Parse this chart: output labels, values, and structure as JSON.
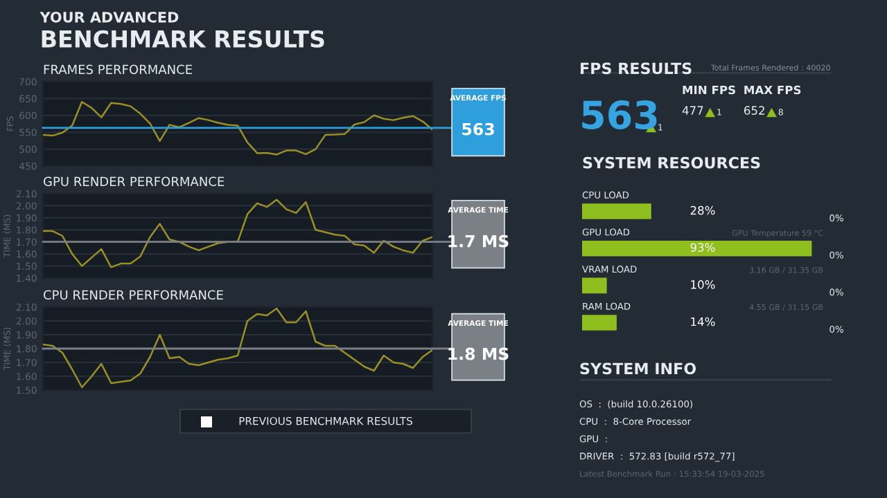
{
  "chart_data": [
    {
      "type": "other",
      "subtitle": "YOUR ADVANCED",
      "title": "BENCHMARK RESULTS",
      "annotations": [
        "PREVIOUS BENCHMARK RESULTS"
      ]
    },
    {
      "type": "line",
      "title": "FRAMES PERFORMANCE",
      "ylabel": "FPS",
      "categories": [
        null,
        null,
        null,
        null,
        null,
        null,
        null,
        null,
        null,
        null,
        null,
        null,
        null,
        null,
        null,
        null,
        null,
        null,
        null,
        null,
        null,
        null,
        null,
        null,
        null,
        null,
        null,
        null,
        null,
        null,
        null,
        null,
        null,
        null,
        null,
        null,
        null,
        null,
        null,
        null,
        null
      ],
      "series": [
        {
          "color": "#9c8f26",
          "values": [
            542,
            540,
            549,
            570,
            640,
            622,
            594,
            637,
            634,
            627,
            605,
            576,
            524,
            572,
            565,
            578,
            592,
            586,
            578,
            572,
            570,
            520,
            488,
            489,
            484,
            496,
            496,
            485,
            500,
            542,
            543,
            545,
            573,
            580,
            600,
            590,
            586,
            593,
            598,
            582,
            558
          ]
        }
      ],
      "ylim": [
        450,
        700
      ],
      "yticks": [
        450,
        500,
        550,
        600,
        650,
        700
      ],
      "grid": "y",
      "tick_labels": "y",
      "marker": "none",
      "line_style": "solid",
      "ref_lines": [
        {
          "axis": "y",
          "value": 563,
          "label": "AVERAGE FPS\n563",
          "color": "#2e9fdc"
        }
      ]
    },
    {
      "type": "line",
      "title": "GPU RENDER PERFORMANCE",
      "ylabel": "TIME (MS)",
      "categories": [
        null,
        null,
        null,
        null,
        null,
        null,
        null,
        null,
        null,
        null,
        null,
        null,
        null,
        null,
        null,
        null,
        null,
        null,
        null,
        null,
        null,
        null,
        null,
        null,
        null,
        null,
        null,
        null,
        null,
        null,
        null,
        null,
        null,
        null,
        null,
        null,
        null,
        null,
        null,
        null,
        null
      ],
      "series": [
        {
          "color": "#9c8f26",
          "values": [
            1.79,
            1.79,
            1.75,
            1.6,
            1.5,
            1.57,
            1.64,
            1.49,
            1.52,
            1.52,
            1.58,
            1.74,
            1.85,
            1.72,
            1.7,
            1.66,
            1.63,
            1.66,
            1.69,
            1.7,
            1.7,
            1.93,
            2.02,
            1.99,
            2.05,
            1.97,
            1.94,
            2.03,
            1.8,
            1.78,
            1.76,
            1.75,
            1.68,
            1.67,
            1.61,
            1.71,
            1.66,
            1.63,
            1.61,
            1.71,
            1.74
          ]
        }
      ],
      "ylim": [
        1.4,
        2.1
      ],
      "yticks": [
        {
          "value": 1.4,
          "label": "1.40"
        },
        {
          "value": 1.5,
          "label": "1.50"
        },
        {
          "value": 1.6,
          "label": "1.60"
        },
        {
          "value": 1.7,
          "label": "1.70"
        },
        {
          "value": 1.8,
          "label": "1.80"
        },
        {
          "value": 1.9,
          "label": "1.90"
        },
        {
          "value": 2.0,
          "label": "2.00"
        },
        {
          "value": 2.1,
          "label": "2.10"
        }
      ],
      "grid": "y",
      "tick_labels": "y",
      "marker": "none",
      "line_style": "solid",
      "ref_lines": [
        {
          "axis": "y",
          "value": 1.7,
          "label": "AVERAGE TIME\n1.7 MS",
          "color": "#7b8087"
        }
      ]
    },
    {
      "type": "line",
      "title": "CPU RENDER PERFORMANCE",
      "ylabel": "TIME (MS)",
      "categories": [
        null,
        null,
        null,
        null,
        null,
        null,
        null,
        null,
        null,
        null,
        null,
        null,
        null,
        null,
        null,
        null,
        null,
        null,
        null,
        null,
        null,
        null,
        null,
        null,
        null,
        null,
        null,
        null,
        null,
        null,
        null,
        null,
        null,
        null,
        null,
        null,
        null,
        null,
        null,
        null,
        null
      ],
      "series": [
        {
          "color": "#9c8f26",
          "values": [
            1.83,
            1.82,
            1.77,
            1.65,
            1.52,
            1.6,
            1.69,
            1.55,
            1.56,
            1.57,
            1.62,
            1.74,
            1.9,
            1.73,
            1.74,
            1.69,
            1.68,
            1.7,
            1.72,
            1.73,
            1.75,
            2.0,
            2.05,
            2.04,
            2.09,
            1.99,
            1.99,
            2.07,
            1.85,
            1.82,
            1.82,
            1.77,
            1.72,
            1.67,
            1.64,
            1.75,
            1.7,
            1.69,
            1.66,
            1.74,
            1.79
          ]
        }
      ],
      "ylim": [
        1.5,
        2.1
      ],
      "yticks": [
        {
          "value": 1.5,
          "label": "1.50"
        },
        {
          "value": 1.6,
          "label": "1.60"
        },
        {
          "value": 1.7,
          "label": "1.70"
        },
        {
          "value": 1.8,
          "label": "1.80"
        },
        {
          "value": 1.9,
          "label": "1.90"
        },
        {
          "value": 2.0,
          "label": "2.00"
        },
        {
          "value": 2.1,
          "label": "2.10"
        }
      ],
      "grid": "y",
      "tick_labels": "y",
      "marker": "none",
      "line_style": "solid",
      "ref_lines": [
        {
          "axis": "y",
          "value": 1.8,
          "label": "AVERAGE TIME\n1.8 MS",
          "color": "#7b8087"
        }
      ]
    },
    {
      "type": "other",
      "title": "FPS RESULTS",
      "annotations": [
        "Total Frames Rendered : 40020",
        "563",
        "1",
        "MIN FPS",
        "477",
        "1",
        "MAX FPS",
        "652",
        "8"
      ]
    },
    {
      "type": "bar",
      "orientation": "horizontal",
      "title": "SYSTEM RESOURCES",
      "categories": [
        "CPU LOAD",
        "GPU LOAD",
        "VRAM LOAD",
        "RAM LOAD"
      ],
      "values": [
        28,
        93,
        10,
        14
      ],
      "colors": [
        "#8fbf1f",
        "#8fbf1f",
        "#8fbf1f",
        "#8fbf1f"
      ],
      "value_labels": [
        "28%",
        "93%",
        "10%",
        "14%"
      ],
      "tick_labels": false,
      "annotations": [
        "0%",
        "GPU Temperature 59 °C",
        "0%",
        "3.16 GB / 31.35 GB",
        "0%",
        "4.55 GB / 31.15 GB",
        "0%"
      ]
    },
    {
      "type": "other",
      "title": "SYSTEM INFO",
      "annotations": [
        "OS  :  (build 10.0.26100)",
        "CPU  :  8-Core Processor",
        "GPU  :",
        "DRIVER  :  572.83 [build r572_77]",
        "Latest Benchmark Run : 15:33:54 19-03-2025"
      ]
    }
  ]
}
